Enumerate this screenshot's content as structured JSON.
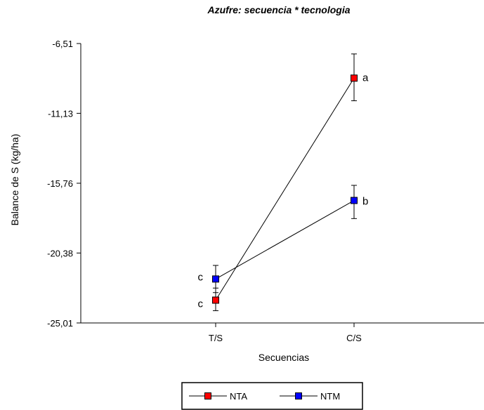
{
  "chart_data": {
    "type": "line",
    "title": "Azufre: secuencia * tecnologia",
    "xlabel": "Secuencias",
    "ylabel": "Balance de S (kg/ha)",
    "categories": [
      "T/S",
      "C/S"
    ],
    "ylim": [
      -25.01,
      -6.51
    ],
    "yticks": [
      {
        "value": -6.51,
        "label": "-6,51"
      },
      {
        "value": -11.13,
        "label": "-11,13"
      },
      {
        "value": -15.76,
        "label": "-15,76"
      },
      {
        "value": -20.38,
        "label": "-20,38"
      },
      {
        "value": -25.01,
        "label": "-25,01"
      }
    ],
    "grid": false,
    "legend_position": "bottom",
    "series": [
      {
        "name": "NTA",
        "color": "#ff0000",
        "values": [
          -23.5,
          -8.8
        ],
        "error_low": [
          -24.2,
          -10.3
        ],
        "error_high": [
          -22.7,
          -7.2
        ],
        "labels": [
          "c",
          "a"
        ]
      },
      {
        "name": "NTM",
        "color": "#0000ff",
        "values": [
          -22.1,
          -16.9
        ],
        "error_low": [
          -23.0,
          -18.1
        ],
        "error_high": [
          -21.2,
          -15.9
        ],
        "labels": [
          "c",
          "b"
        ]
      }
    ]
  }
}
